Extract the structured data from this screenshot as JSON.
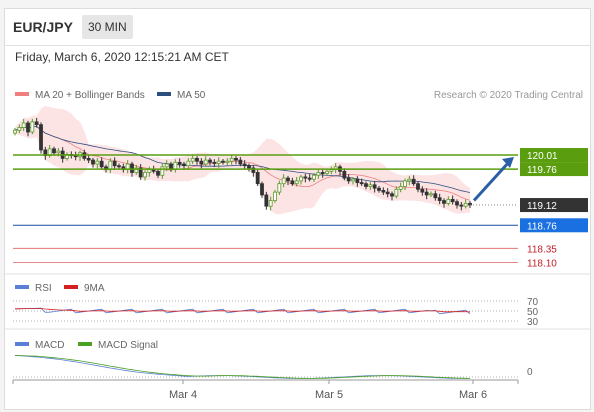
{
  "header": {
    "symbol": "EUR/JPY",
    "interval": "30 MIN",
    "datetime": "Friday, March 6, 2020 12:15:21 AM CET",
    "credit": "Research © 2020 Trading Central"
  },
  "colors": {
    "up": "#5a9a2a",
    "down": "#333333",
    "bollinger": "#f08080",
    "ma50": "#2d4f80",
    "resistance": "#5a9e0f",
    "support": "#1a4fa0",
    "target": "#1a70e0",
    "rsi": "#5b7fd6",
    "rsi_ma": "#d62020",
    "macd": "#5b7fd6",
    "macd_signal": "#4aa020"
  },
  "chart_data": [
    {
      "type": "candlestick",
      "legend": [
        {
          "name": "MA 20 + Bollinger Bands",
          "color": "#f08080"
        },
        {
          "name": "MA 50",
          "color": "#2d4f80"
        }
      ],
      "ylim": [
        118.0,
        120.9
      ],
      "x_ticks": [
        "Mar 4",
        "Mar 5",
        "Mar 6"
      ],
      "levels": {
        "resistance": [
          120.01,
          119.76
        ],
        "current": 119.12,
        "support": 118.76,
        "support_red": [
          118.35,
          118.1
        ]
      },
      "arrow": {
        "from": 119.2,
        "to": 120.01
      },
      "close_series": [
        120.45,
        120.5,
        120.58,
        120.42,
        120.6,
        120.55,
        120.1,
        120.0,
        120.12,
        120.05,
        120.08,
        119.95,
        120.02,
        120.0,
        119.98,
        120.05,
        119.95,
        119.92,
        119.85,
        119.9,
        119.8,
        119.75,
        119.9,
        119.82,
        119.8,
        119.75,
        119.85,
        119.7,
        119.78,
        119.62,
        119.7,
        119.75,
        119.72,
        119.65,
        119.8,
        119.85,
        119.75,
        119.88,
        119.85,
        119.82,
        119.9,
        119.95,
        119.9,
        119.85,
        119.92,
        119.88,
        119.86,
        119.9,
        119.88,
        119.9,
        119.95,
        119.92,
        119.85,
        119.82,
        119.78,
        119.7,
        119.5,
        119.3,
        119.1,
        119.2,
        119.35,
        119.5,
        119.6,
        119.55,
        119.5,
        119.55,
        119.62,
        119.6,
        119.58,
        119.65,
        119.7,
        119.68,
        119.72,
        119.75,
        119.8,
        119.72,
        119.6,
        119.55,
        119.58,
        119.52,
        119.5,
        119.45,
        119.48,
        119.42,
        119.38,
        119.35,
        119.32,
        119.28,
        119.4,
        119.45,
        119.55,
        119.58,
        119.5,
        119.4,
        119.35,
        119.3,
        119.32,
        119.25,
        119.2,
        119.15,
        119.22,
        119.18,
        119.12,
        119.1,
        119.15,
        119.12
      ]
    },
    {
      "type": "line",
      "legend": [
        {
          "name": "RSI",
          "color": "#5b7fd6"
        },
        {
          "name": "9MA",
          "color": "#d62020"
        }
      ],
      "levels": [
        70,
        50,
        30
      ],
      "ylim": [
        20,
        80
      ]
    },
    {
      "type": "line",
      "legend": [
        {
          "name": "MACD",
          "color": "#5b7fd6"
        },
        {
          "name": "MACD Signal",
          "color": "#4aa020"
        }
      ],
      "levels": [
        0
      ]
    }
  ]
}
